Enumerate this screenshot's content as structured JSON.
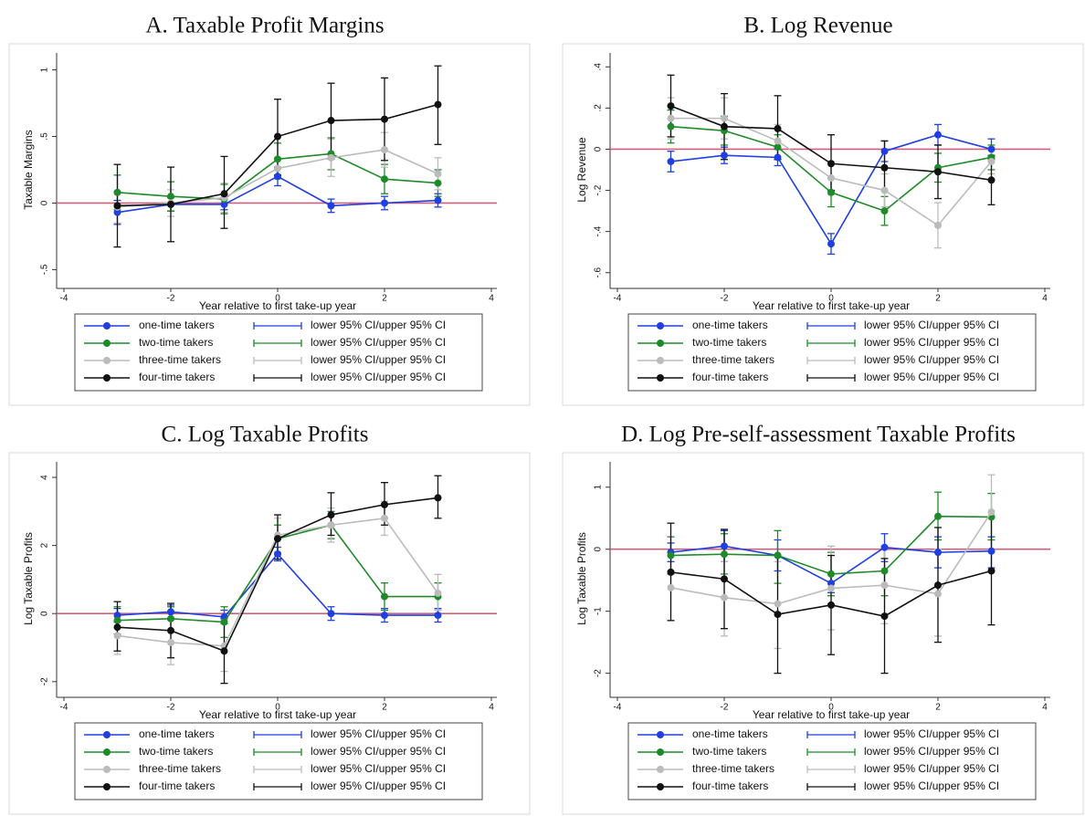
{
  "chart_data": [
    {
      "type": "line",
      "title": "A. Taxable Profit Margins",
      "x_label": "Year relative to first take-up year",
      "y_label": "Taxable Margins",
      "x": [
        -3,
        -2,
        -1,
        0,
        1,
        2,
        3
      ],
      "xlim": [
        -4,
        4
      ],
      "xticks": [
        -4,
        -2,
        0,
        2,
        4
      ],
      "ylim": [
        -0.6,
        1.1
      ],
      "yticks": [
        {
          "value": -0.5,
          "label": "-.5"
        },
        0,
        {
          "value": 0.5,
          "label": ".5"
        },
        1
      ],
      "reference_line": {
        "value": 0,
        "color": "#d0607a"
      },
      "series": [
        {
          "name": "one-time takers",
          "ci_label": "lower 95% CI/upper 95% CI",
          "color": "#1f3fe0",
          "values": [
            -0.07,
            -0.01,
            -0.01,
            0.2,
            -0.02,
            0.0,
            0.02
          ],
          "lower": [
            -0.16,
            -0.06,
            -0.05,
            0.13,
            -0.07,
            -0.05,
            -0.03
          ],
          "upper": [
            0.02,
            0.04,
            0.03,
            0.27,
            0.03,
            0.05,
            0.07
          ]
        },
        {
          "name": "two-time takers",
          "ci_label": "lower 95% CI/upper 95% CI",
          "color": "#1e8a2a",
          "values": [
            0.08,
            0.05,
            0.03,
            0.33,
            0.37,
            0.18,
            0.15
          ],
          "lower": [
            -0.05,
            -0.06,
            -0.08,
            0.21,
            0.25,
            0.07,
            0.05
          ],
          "upper": [
            0.21,
            0.16,
            0.14,
            0.45,
            0.49,
            0.29,
            0.25
          ]
        },
        {
          "name": "three-time takers",
          "ci_label": "lower 95% CI/upper 95% CI",
          "color": "#bbbbbb",
          "values": [
            -0.03,
            0.0,
            0.04,
            0.26,
            0.34,
            0.4,
            0.22
          ],
          "lower": [
            -0.15,
            -0.1,
            -0.07,
            0.18,
            0.2,
            0.27,
            0.1
          ],
          "upper": [
            0.09,
            0.1,
            0.15,
            0.34,
            0.48,
            0.53,
            0.34
          ]
        },
        {
          "name": "four-time takers",
          "ci_label": "lower 95% CI/upper 95% CI",
          "color": "#111111",
          "values": [
            -0.02,
            -0.01,
            0.07,
            0.5,
            0.62,
            0.63,
            0.74
          ],
          "lower": [
            -0.33,
            -0.29,
            -0.19,
            0.21,
            0.33,
            0.32,
            0.44
          ],
          "upper": [
            0.29,
            0.27,
            0.35,
            0.78,
            0.9,
            0.94,
            1.03
          ]
        }
      ]
    },
    {
      "type": "line",
      "title": "B. Log Revenue",
      "x_label": "Year relative to first take-up year",
      "y_label": "Log Revenue",
      "x": [
        -3,
        -2,
        -1,
        0,
        1,
        2,
        3
      ],
      "xlim": [
        -4,
        4
      ],
      "xticks": [
        -4,
        -2,
        0,
        2,
        4
      ],
      "ylim": [
        -0.65,
        0.45
      ],
      "yticks": [
        {
          "value": -0.6,
          "label": "-.6"
        },
        {
          "value": -0.4,
          "label": "-.4"
        },
        {
          "value": -0.2,
          "label": "-.2"
        },
        0,
        {
          "value": 0.2,
          "label": ".2"
        },
        {
          "value": 0.4,
          "label": ".4"
        }
      ],
      "reference_line": {
        "value": 0,
        "color": "#d0607a"
      },
      "series": [
        {
          "name": "one-time takers",
          "ci_label": "lower 95% CI/upper 95% CI",
          "color": "#1f3fe0",
          "values": [
            -0.06,
            -0.03,
            -0.04,
            -0.46,
            -0.01,
            0.07,
            0.0
          ],
          "lower": [
            -0.11,
            -0.07,
            -0.08,
            -0.51,
            -0.06,
            0.02,
            -0.05
          ],
          "upper": [
            -0.01,
            0.01,
            0.0,
            -0.41,
            0.04,
            0.12,
            0.05
          ]
        },
        {
          "name": "two-time takers",
          "ci_label": "lower 95% CI/upper 95% CI",
          "color": "#1e8a2a",
          "values": [
            0.11,
            0.09,
            0.01,
            -0.21,
            -0.3,
            -0.09,
            -0.04
          ],
          "lower": [
            0.03,
            0.02,
            -0.05,
            -0.28,
            -0.37,
            -0.16,
            -0.1
          ],
          "upper": [
            0.19,
            0.16,
            0.07,
            -0.14,
            -0.23,
            -0.02,
            0.02
          ]
        },
        {
          "name": "three-time takers",
          "ci_label": "lower 95% CI/upper 95% CI",
          "color": "#bbbbbb",
          "values": [
            0.15,
            0.15,
            0.04,
            -0.14,
            -0.2,
            -0.37,
            -0.06
          ],
          "lower": [
            0.05,
            0.05,
            -0.04,
            -0.22,
            -0.28,
            -0.48,
            -0.12
          ],
          "upper": [
            0.25,
            0.25,
            0.12,
            -0.06,
            -0.12,
            -0.26,
            0.0
          ]
        },
        {
          "name": "four-time takers",
          "ci_label": "lower 95% CI/upper 95% CI",
          "color": "#111111",
          "values": [
            0.21,
            0.11,
            0.1,
            -0.07,
            -0.09,
            -0.11,
            -0.15
          ],
          "lower": [
            0.06,
            -0.05,
            -0.05,
            -0.2,
            -0.2,
            -0.24,
            -0.27
          ],
          "upper": [
            0.36,
            0.27,
            0.26,
            0.07,
            0.04,
            0.02,
            -0.03
          ]
        }
      ]
    },
    {
      "type": "line",
      "title": "C. Log Taxable Profits",
      "x_label": "Year relative to first take-up year",
      "y_label": "Log Taxable Profits",
      "x": [
        -3,
        -2,
        -1,
        0,
        1,
        2,
        3
      ],
      "xlim": [
        -4,
        4
      ],
      "xticks": [
        -4,
        -2,
        0,
        2,
        4
      ],
      "ylim": [
        -2.3,
        4.35
      ],
      "yticks": [
        -2,
        0,
        2,
        4
      ],
      "reference_line": {
        "value": 0,
        "color": "#d0607a"
      },
      "series": [
        {
          "name": "one-time takers",
          "ci_label": "lower 95% CI/upper 95% CI",
          "color": "#1f3fe0",
          "values": [
            -0.05,
            0.05,
            -0.1,
            1.75,
            0.0,
            -0.05,
            -0.05
          ],
          "lower": [
            -0.25,
            -0.15,
            -0.3,
            1.55,
            -0.2,
            -0.25,
            -0.25
          ],
          "upper": [
            0.15,
            0.25,
            0.1,
            1.95,
            0.2,
            0.15,
            0.15
          ]
        },
        {
          "name": "two-time takers",
          "ci_label": "lower 95% CI/upper 95% CI",
          "color": "#1e8a2a",
          "values": [
            -0.2,
            -0.15,
            -0.25,
            2.2,
            2.6,
            0.5,
            0.5
          ],
          "lower": [
            -0.6,
            -0.5,
            -0.7,
            1.8,
            2.2,
            0.1,
            0.1
          ],
          "upper": [
            0.2,
            0.2,
            0.2,
            2.6,
            3.0,
            0.9,
            0.9
          ]
        },
        {
          "name": "three-time takers",
          "ci_label": "lower 95% CI/upper 95% CI",
          "color": "#bbbbbb",
          "values": [
            -0.65,
            -0.85,
            -0.95,
            2.3,
            2.6,
            2.8,
            0.6
          ],
          "lower": [
            -1.2,
            -1.5,
            -1.7,
            1.8,
            2.1,
            2.3,
            0.1
          ],
          "upper": [
            -0.1,
            -0.2,
            -0.2,
            2.8,
            3.1,
            3.3,
            1.15
          ]
        },
        {
          "name": "four-time takers",
          "ci_label": "lower 95% CI/upper 95% CI",
          "color": "#111111",
          "values": [
            -0.4,
            -0.5,
            -1.1,
            2.2,
            2.9,
            3.2,
            3.4
          ],
          "lower": [
            -1.1,
            -1.3,
            -2.05,
            1.6,
            2.3,
            2.6,
            2.8
          ],
          "upper": [
            0.35,
            0.3,
            -0.15,
            2.9,
            3.55,
            3.85,
            4.05
          ]
        }
      ]
    },
    {
      "type": "line",
      "title": "D. Log Pre-self-assessment Taxable Profits",
      "x_label": "Year relative to first take-up year",
      "y_label": "Log Taxable Profits",
      "x": [
        -3,
        -2,
        -1,
        0,
        1,
        2,
        3
      ],
      "xlim": [
        -4,
        4
      ],
      "xticks": [
        -4,
        -2,
        0,
        2,
        4
      ],
      "ylim": [
        -2.3,
        1.35
      ],
      "yticks": [
        -2,
        -1,
        0,
        1
      ],
      "reference_line": {
        "value": 0,
        "color": "#d0607a"
      },
      "series": [
        {
          "name": "one-time takers",
          "ci_label": "lower 95% CI/upper 95% CI",
          "color": "#1f3fe0",
          "values": [
            -0.05,
            0.05,
            -0.1,
            -0.55,
            0.03,
            -0.05,
            -0.03
          ],
          "lower": [
            -0.2,
            -0.2,
            -0.35,
            -0.7,
            -0.2,
            -0.3,
            -0.3
          ],
          "upper": [
            0.1,
            0.3,
            0.15,
            -0.4,
            0.25,
            0.2,
            0.2
          ]
        },
        {
          "name": "two-time takers",
          "ci_label": "lower 95% CI/upper 95% CI",
          "color": "#1e8a2a",
          "values": [
            -0.1,
            -0.08,
            -0.1,
            -0.4,
            -0.35,
            0.53,
            0.52
          ],
          "lower": [
            -0.4,
            -0.4,
            -0.55,
            -0.75,
            -0.75,
            0.15,
            0.15
          ],
          "upper": [
            0.2,
            0.25,
            0.3,
            -0.05,
            0.05,
            0.92,
            0.9
          ]
        },
        {
          "name": "three-time takers",
          "ci_label": "lower 95% CI/upper 95% CI",
          "color": "#bbbbbb",
          "values": [
            -0.62,
            -0.78,
            -0.88,
            -0.63,
            -0.58,
            -0.72,
            0.6
          ],
          "lower": [
            -1.15,
            -1.4,
            -1.6,
            -1.3,
            -1.2,
            -1.4,
            0.0
          ],
          "upper": [
            -0.1,
            -0.2,
            -0.2,
            0.05,
            0.05,
            0.0,
            1.2
          ]
        },
        {
          "name": "four-time takers",
          "ci_label": "lower 95% CI/upper 95% CI",
          "color": "#111111",
          "values": [
            -0.37,
            -0.48,
            -1.05,
            -0.9,
            -1.08,
            -0.58,
            -0.35
          ],
          "lower": [
            -1.15,
            -1.28,
            -2.0,
            -1.7,
            -2.0,
            -1.5,
            -1.22
          ],
          "upper": [
            0.42,
            0.32,
            -0.1,
            -0.1,
            -0.15,
            0.35,
            0.52
          ]
        }
      ]
    }
  ]
}
